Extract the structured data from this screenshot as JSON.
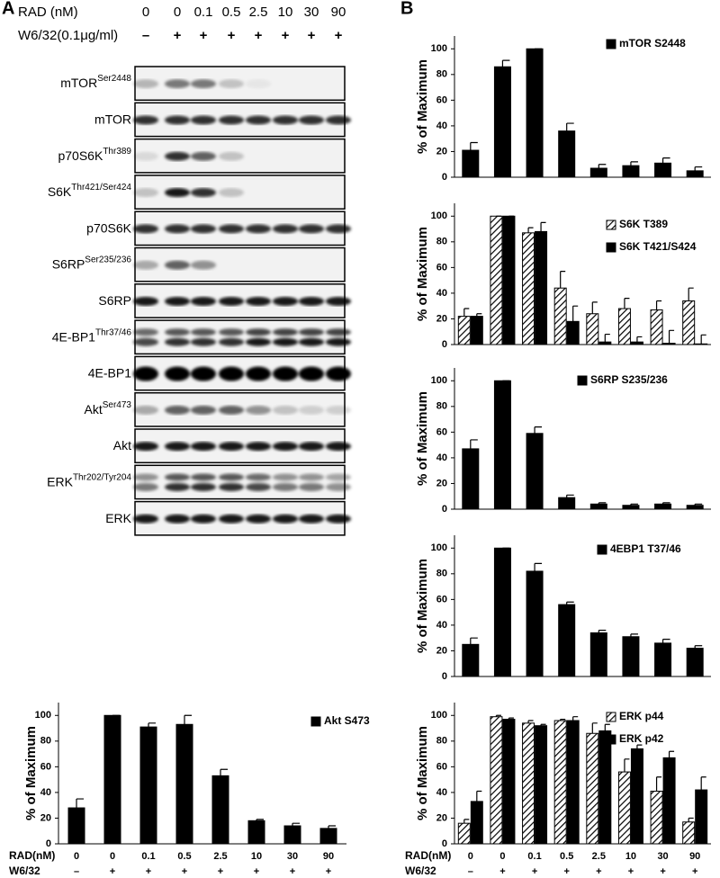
{
  "panel_labels": [
    "A",
    "B"
  ],
  "blot": {
    "rad_label": "RAD  (nM)",
    "rad_values": [
      "0",
      "0",
      "0.1",
      "0.5",
      "2.5",
      "10",
      "30",
      "90"
    ],
    "w6_label": "W6/32(0.1μg/ml)",
    "w6_values": [
      "–",
      "+",
      "+",
      "+",
      "+",
      "+",
      "+",
      "+"
    ],
    "rows": [
      {
        "name": "mTOR",
        "sup": "Ser2448"
      },
      {
        "name": "mTOR"
      },
      {
        "name": "p70S6K",
        "sup": "Thr389"
      },
      {
        "name": "S6K",
        "sup": "Thr421/Ser424"
      },
      {
        "name": "p70S6K"
      },
      {
        "name": "S6RP",
        "sup": "Ser235/236"
      },
      {
        "name": "S6RP"
      },
      {
        "name": "4E-BP1",
        "sup": "Thr37/46"
      },
      {
        "name": "4E-BP1"
      },
      {
        "name": "Akt",
        "sup": "Ser473"
      },
      {
        "name": "Akt"
      },
      {
        "name": "ERK",
        "sup": "Thr202/Tyr204"
      },
      {
        "name": "ERK"
      }
    ]
  },
  "chart_data": [
    {
      "type": "bar",
      "ylabel": "% of Maximum",
      "ylim": [
        0,
        110
      ],
      "yticks": [
        0,
        20,
        40,
        60,
        80,
        100
      ],
      "x_label": "RAD(nM)",
      "categories": [
        "0",
        "0",
        "0.1",
        "0.5",
        "2.5",
        "10",
        "30",
        "90"
      ],
      "w6_label": "W6/32",
      "w6_values": [
        "–",
        "+",
        "+",
        "+",
        "+",
        "+",
        "+",
        "+"
      ],
      "series": [
        {
          "name": "Akt S473",
          "color": "#000000",
          "pattern": "solid",
          "values": [
            28,
            100,
            91,
            93,
            53,
            18,
            14,
            12
          ],
          "errors": [
            7,
            0,
            3,
            7,
            5,
            1,
            2,
            2
          ]
        }
      ]
    },
    {
      "type": "bar",
      "ylabel": "% of Maximum",
      "ylim": [
        0,
        110
      ],
      "yticks": [
        0,
        20,
        40,
        60,
        80,
        100
      ],
      "series": [
        {
          "name": "mTOR S2448",
          "color": "#000000",
          "pattern": "solid",
          "values": [
            21,
            86,
            100,
            36,
            7,
            9,
            11,
            5
          ],
          "errors": [
            6,
            5,
            0,
            6,
            3,
            3,
            4,
            3
          ]
        }
      ]
    },
    {
      "type": "bar",
      "ylabel": "% of Maximum",
      "ylim": [
        0,
        110
      ],
      "yticks": [
        0,
        20,
        40,
        60,
        80,
        100
      ],
      "series": [
        {
          "name": "S6K T389",
          "color": "#000000",
          "pattern": "hatch",
          "values": [
            22,
            100,
            87,
            44,
            24,
            28,
            27,
            34
          ],
          "errors": [
            6,
            0,
            4,
            13,
            9,
            8,
            7,
            10
          ]
        },
        {
          "name": "S6K T421/S424",
          "color": "#000000",
          "pattern": "solid",
          "values": [
            22,
            100,
            88,
            18,
            2,
            2,
            1,
            0.5
          ],
          "errors": [
            2,
            0,
            7,
            12,
            6,
            4,
            10,
            7
          ]
        }
      ]
    },
    {
      "type": "bar",
      "ylabel": "% of Maximum",
      "ylim": [
        0,
        110
      ],
      "yticks": [
        0,
        20,
        40,
        60,
        80,
        100
      ],
      "series": [
        {
          "name": "S6RP S235/236",
          "color": "#000000",
          "pattern": "solid",
          "values": [
            47,
            100,
            59,
            9,
            4,
            3,
            4,
            3
          ],
          "errors": [
            7,
            0,
            5,
            2,
            1,
            1,
            1,
            1
          ]
        }
      ]
    },
    {
      "type": "bar",
      "ylabel": "% of Maximum",
      "ylim": [
        0,
        110
      ],
      "yticks": [
        0,
        20,
        40,
        60,
        80,
        100
      ],
      "series": [
        {
          "name": "4EBP1 T37/46",
          "color": "#000000",
          "pattern": "solid",
          "values": [
            25,
            100,
            82,
            56,
            34,
            31,
            26,
            22
          ],
          "errors": [
            5,
            0,
            6,
            2,
            2,
            2,
            3,
            2
          ]
        }
      ]
    },
    {
      "type": "bar",
      "ylabel": "% of Maximum",
      "ylim": [
        0,
        110
      ],
      "yticks": [
        0,
        20,
        40,
        60,
        80,
        100
      ],
      "x_label": "RAD(nM)",
      "categories": [
        "0",
        "0",
        "0.1",
        "0.5",
        "2.5",
        "10",
        "30",
        "90"
      ],
      "w6_label": "W6/32",
      "w6_values": [
        "–",
        "+",
        "+",
        "+",
        "+",
        "+",
        "+",
        "+"
      ],
      "series": [
        {
          "name": "ERK p44",
          "color": "#000000",
          "pattern": "hatch",
          "values": [
            16,
            99,
            94,
            96,
            86,
            56,
            41,
            17
          ],
          "errors": [
            3,
            1,
            2,
            1,
            8,
            10,
            11,
            3
          ]
        },
        {
          "name": "ERK p42",
          "color": "#000000",
          "pattern": "solid",
          "values": [
            33,
            97,
            92,
            96,
            88,
            74,
            67,
            42
          ],
          "errors": [
            8,
            1,
            1,
            3,
            5,
            3,
            5,
            10
          ]
        }
      ]
    }
  ]
}
